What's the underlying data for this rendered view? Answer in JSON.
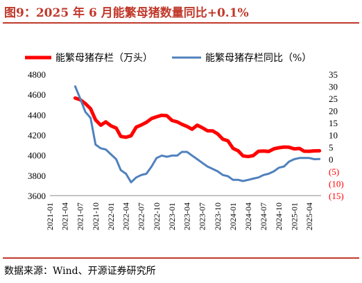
{
  "title": "图9：2025 年 6 月能繁母猪数量同比+0.1%",
  "source": "数据来源：Wind、开源证券研究所",
  "colors": {
    "series_left": "#ff0000",
    "series_right": "#4f81bd",
    "accent": "#c0392b"
  },
  "chart_data": {
    "type": "line",
    "x_ticks": [
      "2021-01",
      "2021-04",
      "2021-07",
      "2021-10",
      "2022-01",
      "2022-04",
      "2022-07",
      "2022-10",
      "2023-01",
      "2023-04",
      "2023-07",
      "2023-10",
      "2024-01",
      "2024-04",
      "2024-07",
      "2024-10",
      "2025-01",
      "2025-04"
    ],
    "y_left": {
      "ticks": [
        "3600",
        "3800",
        "4000",
        "4200",
        "4400",
        "4600",
        "4800"
      ],
      "min": 3600,
      "max": 4800
    },
    "y_right": {
      "ticks": [
        "35",
        "30",
        "25",
        "20",
        "15",
        "10",
        "5",
        "0",
        "(5)",
        "(10)",
        "(15)"
      ],
      "min": -15,
      "max": 35
    },
    "legend_position": "top",
    "series": [
      {
        "name": "能繁母猪存栏（万头）",
        "axis": "left",
        "color": "#ff0000",
        "x": [
          "2021-06",
          "2021-07",
          "2021-08",
          "2021-09",
          "2021-10",
          "2021-11",
          "2021-12",
          "2022-01",
          "2022-02",
          "2022-03",
          "2022-04",
          "2022-05",
          "2022-06",
          "2022-07",
          "2022-08",
          "2022-09",
          "2022-10",
          "2022-11",
          "2022-12",
          "2023-01",
          "2023-02",
          "2023-03",
          "2023-04",
          "2023-05",
          "2023-06",
          "2023-07",
          "2023-08",
          "2023-09",
          "2023-10",
          "2023-11",
          "2023-12",
          "2024-01",
          "2024-02",
          "2024-03",
          "2024-04",
          "2024-05",
          "2024-06",
          "2024-07",
          "2024-08",
          "2024-09",
          "2024-10",
          "2024-11",
          "2024-12",
          "2025-01",
          "2025-02",
          "2025-03",
          "2025-04",
          "2025-05",
          "2025-06"
        ],
        "y": [
          4564,
          4548,
          4509,
          4459,
          4348,
          4296,
          4329,
          4290,
          4268,
          4185,
          4177,
          4192,
          4277,
          4298,
          4324,
          4362,
          4379,
          4394,
          4390,
          4343,
          4329,
          4305,
          4284,
          4256,
          4296,
          4271,
          4241,
          4240,
          4210,
          4158,
          4142,
          4067,
          4042,
          3992,
          3986,
          3996,
          4038,
          4041,
          4036,
          4062,
          4073,
          4080,
          4078,
          4062,
          4066,
          4039,
          4038,
          4042,
          4043
        ]
      },
      {
        "name": "能繁母猪存栏同比（%）",
        "axis": "right",
        "color": "#4f81bd",
        "x": [
          "2021-06",
          "2021-07",
          "2021-08",
          "2021-09",
          "2021-10",
          "2021-11",
          "2021-12",
          "2022-01",
          "2022-02",
          "2022-03",
          "2022-04",
          "2022-05",
          "2022-06",
          "2022-07",
          "2022-08",
          "2022-09",
          "2022-10",
          "2022-11",
          "2022-12",
          "2023-01",
          "2023-02",
          "2023-03",
          "2023-04",
          "2023-05",
          "2023-06",
          "2023-07",
          "2023-08",
          "2023-09",
          "2023-10",
          "2023-11",
          "2023-12",
          "2024-01",
          "2024-02",
          "2024-03",
          "2024-04",
          "2024-05",
          "2024-06",
          "2024-07",
          "2024-08",
          "2024-09",
          "2024-10",
          "2024-11",
          "2024-12",
          "2025-01",
          "2025-02",
          "2025-03",
          "2025-04",
          "2025-05",
          "2025-06"
        ],
        "y": [
          30,
          25,
          19.5,
          17,
          6,
          4.5,
          4,
          2,
          0,
          -4.5,
          -6,
          -9.5,
          -7.5,
          -6.5,
          -6,
          -3,
          0.5,
          1.5,
          1,
          1.5,
          1.5,
          3,
          3,
          1.5,
          0,
          -1.5,
          -3,
          -4,
          -5,
          -6.5,
          -7,
          -8.5,
          -8.5,
          -9,
          -8.5,
          -8,
          -7.5,
          -6.5,
          -6,
          -5,
          -3.5,
          -3,
          -1,
          0,
          0.5,
          0.5,
          0.5,
          0,
          0.1
        ]
      }
    ]
  }
}
